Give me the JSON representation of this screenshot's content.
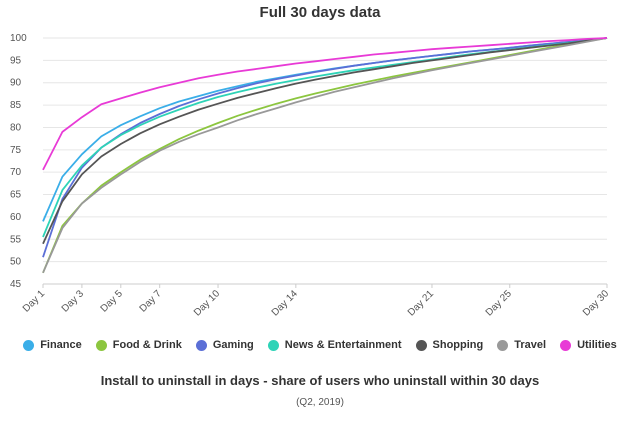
{
  "chart_data": {
    "type": "line",
    "title": "Full 30 days data",
    "subtitle": "Install to uninstall in days - share of users who uninstall within 30 days",
    "note": "(Q2, 2019)",
    "xlabel": "",
    "ylabel": "",
    "ylim": [
      45,
      100
    ],
    "yticks": [
      45,
      50,
      55,
      60,
      65,
      70,
      75,
      80,
      85,
      90,
      95,
      100
    ],
    "xlim": [
      1,
      30
    ],
    "xticks": [
      {
        "value": 1,
        "label": "Day 1"
      },
      {
        "value": 3,
        "label": "Day 3"
      },
      {
        "value": 5,
        "label": "Day 5"
      },
      {
        "value": 7,
        "label": "Day 7"
      },
      {
        "value": 10,
        "label": "Day 10"
      },
      {
        "value": 14,
        "label": "Day 14"
      },
      {
        "value": 21,
        "label": "Day 21"
      },
      {
        "value": 25,
        "label": "Day 25"
      },
      {
        "value": 30,
        "label": "Day 30"
      }
    ],
    "x": [
      1,
      2,
      3,
      4,
      5,
      6,
      7,
      8,
      9,
      10,
      11,
      12,
      13,
      14,
      15,
      16,
      17,
      18,
      19,
      20,
      21,
      22,
      23,
      24,
      25,
      26,
      27,
      28,
      29,
      30
    ],
    "series": [
      {
        "name": "Finance",
        "color": "#3aaee8",
        "values": [
          59,
          69,
          74,
          78,
          80.5,
          82.5,
          84.3,
          85.8,
          87,
          88.2,
          89.2,
          90.2,
          91,
          91.8,
          92.5,
          93.2,
          93.8,
          94.4,
          95,
          95.5,
          96,
          96.5,
          97,
          97.4,
          97.8,
          98.3,
          98.7,
          99.1,
          99.5,
          100
        ]
      },
      {
        "name": "Food & Drink",
        "color": "#8cc63f",
        "values": [
          47.5,
          58,
          63,
          67,
          70,
          72.8,
          75.2,
          77.4,
          79.3,
          81,
          82.6,
          84,
          85.3,
          86.5,
          87.6,
          88.6,
          89.6,
          90.5,
          91.4,
          92.2,
          93,
          93.8,
          94.6,
          95.4,
          96.2,
          97,
          97.8,
          98.6,
          99.3,
          100
        ]
      },
      {
        "name": "Gaming",
        "color": "#5b6fd6",
        "values": [
          51,
          64,
          71,
          75.5,
          78.5,
          81,
          83,
          84.8,
          86.3,
          87.6,
          88.8,
          89.9,
          90.8,
          91.6,
          92.4,
          93.1,
          93.8,
          94.4,
          95,
          95.5,
          96,
          96.5,
          97,
          97.4,
          97.8,
          98.3,
          98.7,
          99.1,
          99.5,
          100
        ]
      },
      {
        "name": "News & Entertainment",
        "color": "#2ed3b7",
        "values": [
          55.5,
          66,
          71.5,
          75.5,
          78.3,
          80.5,
          82.4,
          84,
          85.5,
          86.8,
          87.9,
          88.9,
          89.8,
          90.6,
          91.4,
          92.1,
          92.8,
          93.4,
          94,
          94.6,
          95.2,
          95.8,
          96.4,
          96.9,
          97.4,
          97.9,
          98.4,
          98.9,
          99.4,
          100
        ]
      },
      {
        "name": "Shopping",
        "color": "#555555",
        "values": [
          54,
          63.5,
          69.5,
          73.5,
          76.3,
          78.7,
          80.7,
          82.4,
          84,
          85.3,
          86.6,
          87.7,
          88.8,
          89.8,
          90.7,
          91.5,
          92.3,
          93,
          93.7,
          94.4,
          95,
          95.6,
          96.2,
          96.8,
          97.3,
          97.8,
          98.3,
          98.8,
          99.4,
          100
        ]
      },
      {
        "name": "Travel",
        "color": "#999999",
        "values": [
          47.5,
          57.5,
          63,
          66.5,
          69.5,
          72.3,
          74.8,
          76.8,
          78.5,
          80,
          81.6,
          83,
          84.3,
          85.6,
          86.8,
          88,
          89,
          90,
          91,
          91.9,
          92.8,
          93.6,
          94.4,
          95.2,
          96,
          96.8,
          97.6,
          98.4,
          99.2,
          100
        ]
      },
      {
        "name": "Utilities",
        "color": "#e83ad6",
        "values": [
          70.5,
          79,
          82.3,
          85.2,
          86.5,
          87.8,
          89,
          90,
          91,
          91.8,
          92.5,
          93.1,
          93.7,
          94.3,
          94.8,
          95.3,
          95.8,
          96.3,
          96.7,
          97.1,
          97.5,
          97.8,
          98.1,
          98.4,
          98.7,
          99,
          99.3,
          99.5,
          99.8,
          100
        ]
      }
    ]
  }
}
